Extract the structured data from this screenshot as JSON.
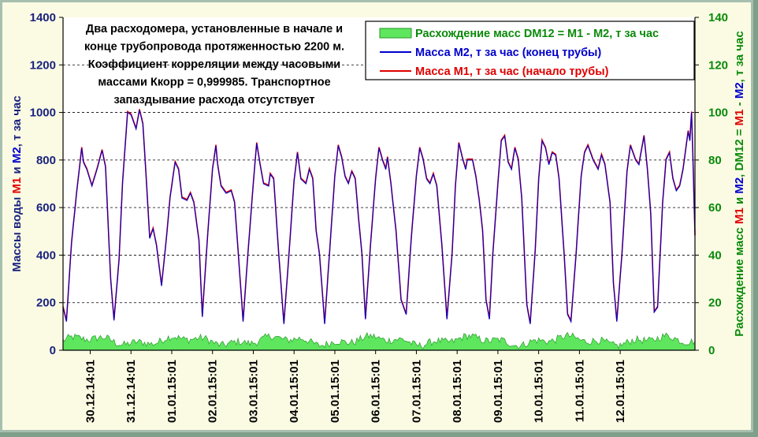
{
  "chart_data": {
    "type": "line",
    "annotation": [
      "Два расходомера, установленные в начале и",
      "конце трубопровода протяженностью 2200 м.",
      "Коэффициент корреляции между часовыми",
      "массами Ккорр = 0,999985. Транспортное",
      "запаздывание расхода отсутствует"
    ],
    "y_left": {
      "label_parts": [
        {
          "text": "Массы воды ",
          "color": "#1a237e"
        },
        {
          "text": "M1",
          "color": "#e00000"
        },
        {
          "text": " и ",
          "color": "#1a237e"
        },
        {
          "text": "M2",
          "color": "#0000cc"
        },
        {
          "text": ", т за час",
          "color": "#1a237e"
        }
      ],
      "lim": [
        0,
        1400
      ],
      "ticks": [
        "0",
        "200",
        "400",
        "600",
        "800",
        "1000",
        "1200",
        "1400"
      ]
    },
    "y_right": {
      "label_parts": [
        {
          "text": "Расхождение масс ",
          "color": "#0a8a0a"
        },
        {
          "text": "M1",
          "color": "#e00000"
        },
        {
          "text": " и ",
          "color": "#0a8a0a"
        },
        {
          "text": "M2",
          "color": "#0000cc"
        },
        {
          "text": ", DM12 = ",
          "color": "#0a8a0a"
        },
        {
          "text": "M1",
          "color": "#e00000"
        },
        {
          "text": " - ",
          "color": "#0a8a0a"
        },
        {
          "text": "M2",
          "color": "#0000cc"
        },
        {
          "text": ", т за час",
          "color": "#0a8a0a"
        }
      ],
      "lim": [
        0,
        140
      ],
      "ticks": [
        "0",
        "20",
        "40",
        "60",
        "80",
        "100",
        "120",
        "140"
      ]
    },
    "x_ticks": [
      "30.12.14:01",
      "31.12.14:01",
      "01.01.15:01",
      "02.01.15:01",
      "03.01.15:01",
      "04.01.15:01",
      "05.01.15:01",
      "06.01.15:01",
      "07.01.15:01",
      "08.01.15:01",
      "09.01.15:01",
      "10.01.15:01",
      "11.01.15:01",
      "12.01.15:01"
    ],
    "x_range_hours": [
      -16,
      356
    ],
    "grid": {
      "horizontal": true,
      "style": "dashed"
    },
    "legend": {
      "placement": "top-right",
      "entries": [
        {
          "label": "Расхождение масс DM12 = M1 - M2, т за час",
          "color": "#0a8a0a",
          "swatch": "area"
        },
        {
          "label": "Масса M2, т за час (конец трубы)",
          "color": "#0000cc",
          "swatch": "line"
        },
        {
          "label": "Масса M1, т за час (начало трубы)",
          "color": "#e00000",
          "swatch": "line"
        }
      ]
    },
    "series": [
      {
        "name": "Масса M1, т за час (начало трубы)",
        "color": "#e00000",
        "keypoints_hours_values": [
          [
            -16,
            180
          ],
          [
            -14,
            120
          ],
          [
            -11,
            450
          ],
          [
            -8,
            660
          ],
          [
            -5,
            850
          ],
          [
            -4,
            790
          ],
          [
            -2,
            760
          ],
          [
            1,
            690
          ],
          [
            4,
            760
          ],
          [
            7,
            840
          ],
          [
            9,
            770
          ],
          [
            12,
            300
          ],
          [
            14,
            125
          ],
          [
            17,
            380
          ],
          [
            19,
            700
          ],
          [
            22,
            1000
          ],
          [
            24,
            990
          ],
          [
            27,
            930
          ],
          [
            29,
            1010
          ],
          [
            31,
            950
          ],
          [
            33,
            720
          ],
          [
            35,
            470
          ],
          [
            37,
            510
          ],
          [
            39,
            440
          ],
          [
            42,
            270
          ],
          [
            45,
            480
          ],
          [
            47,
            640
          ],
          [
            50,
            790
          ],
          [
            52,
            760
          ],
          [
            54,
            640
          ],
          [
            57,
            630
          ],
          [
            59,
            660
          ],
          [
            61,
            620
          ],
          [
            64,
            460
          ],
          [
            66,
            140
          ],
          [
            69,
            470
          ],
          [
            72,
            760
          ],
          [
            74,
            860
          ],
          [
            75,
            780
          ],
          [
            77,
            690
          ],
          [
            80,
            660
          ],
          [
            83,
            670
          ],
          [
            85,
            620
          ],
          [
            87,
            420
          ],
          [
            90,
            120
          ],
          [
            93,
            420
          ],
          [
            96,
            700
          ],
          [
            98,
            870
          ],
          [
            100,
            780
          ],
          [
            102,
            700
          ],
          [
            105,
            690
          ],
          [
            106,
            740
          ],
          [
            108,
            720
          ],
          [
            111,
            400
          ],
          [
            114,
            110
          ],
          [
            117,
            400
          ],
          [
            120,
            710
          ],
          [
            122,
            830
          ],
          [
            124,
            720
          ],
          [
            127,
            700
          ],
          [
            129,
            760
          ],
          [
            131,
            720
          ],
          [
            133,
            500
          ],
          [
            135,
            400
          ],
          [
            138,
            110
          ],
          [
            141,
            420
          ],
          [
            144,
            730
          ],
          [
            146,
            860
          ],
          [
            148,
            810
          ],
          [
            150,
            730
          ],
          [
            152,
            700
          ],
          [
            154,
            750
          ],
          [
            156,
            720
          ],
          [
            158,
            550
          ],
          [
            160,
            400
          ],
          [
            162,
            130
          ],
          [
            165,
            440
          ],
          [
            168,
            720
          ],
          [
            170,
            850
          ],
          [
            172,
            800
          ],
          [
            174,
            760
          ],
          [
            175,
            810
          ],
          [
            177,
            700
          ],
          [
            180,
            500
          ],
          [
            183,
            210
          ],
          [
            186,
            150
          ],
          [
            189,
            470
          ],
          [
            192,
            730
          ],
          [
            194,
            850
          ],
          [
            196,
            800
          ],
          [
            198,
            720
          ],
          [
            200,
            700
          ],
          [
            202,
            740
          ],
          [
            204,
            690
          ],
          [
            207,
            440
          ],
          [
            210,
            130
          ],
          [
            213,
            400
          ],
          [
            215,
            690
          ],
          [
            217,
            870
          ],
          [
            219,
            810
          ],
          [
            221,
            760
          ],
          [
            222,
            800
          ],
          [
            225,
            800
          ],
          [
            227,
            730
          ],
          [
            229,
            630
          ],
          [
            231,
            500
          ],
          [
            233,
            210
          ],
          [
            235,
            130
          ],
          [
            237,
            400
          ],
          [
            240,
            700
          ],
          [
            242,
            880
          ],
          [
            244,
            900
          ],
          [
            246,
            790
          ],
          [
            248,
            760
          ],
          [
            250,
            850
          ],
          [
            252,
            800
          ],
          [
            254,
            640
          ],
          [
            257,
            190
          ],
          [
            259,
            110
          ],
          [
            262,
            420
          ],
          [
            264,
            720
          ],
          [
            266,
            880
          ],
          [
            268,
            850
          ],
          [
            270,
            780
          ],
          [
            272,
            830
          ],
          [
            274,
            820
          ],
          [
            276,
            720
          ],
          [
            279,
            400
          ],
          [
            281,
            150
          ],
          [
            283,
            120
          ],
          [
            286,
            400
          ],
          [
            289,
            730
          ],
          [
            291,
            830
          ],
          [
            293,
            860
          ],
          [
            296,
            800
          ],
          [
            299,
            760
          ],
          [
            301,
            820
          ],
          [
            303,
            780
          ],
          [
            306,
            620
          ],
          [
            308,
            280
          ],
          [
            310,
            120
          ],
          [
            313,
            400
          ],
          [
            316,
            750
          ],
          [
            318,
            860
          ],
          [
            321,
            800
          ],
          [
            323,
            780
          ],
          [
            326,
            900
          ],
          [
            328,
            760
          ],
          [
            330,
            570
          ],
          [
            332,
            160
          ],
          [
            334,
            180
          ],
          [
            337,
            620
          ],
          [
            339,
            800
          ],
          [
            341,
            830
          ],
          [
            343,
            720
          ],
          [
            345,
            670
          ],
          [
            347,
            690
          ],
          [
            349,
            760
          ],
          [
            352,
            920
          ],
          [
            353,
            880
          ],
          [
            354,
            1000
          ],
          [
            355,
            760
          ],
          [
            356,
            480
          ]
        ]
      },
      {
        "name": "Масса M2, т за час (конец трубы)",
        "color": "#0000cc",
        "same_as": "M1 (коэффициент корреляции 0,999985)"
      },
      {
        "name": "Расхождение масс DM12 = M1 - M2, т за час",
        "color": "#0a8a0a",
        "axis": "right",
        "typical_range": [
          1,
          8
        ],
        "mean": 4
      }
    ]
  }
}
